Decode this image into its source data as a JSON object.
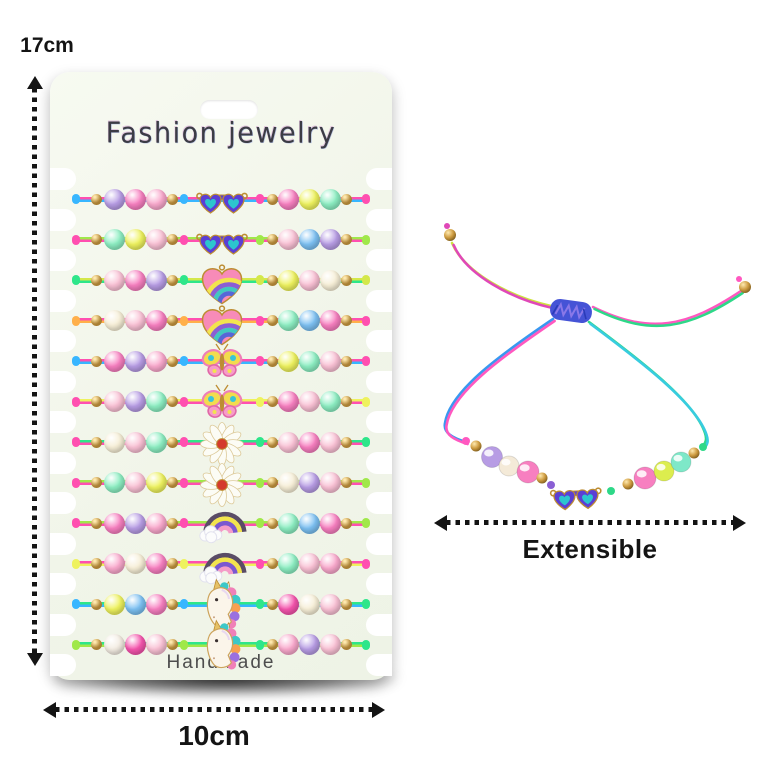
{
  "annotations": {
    "height_label": "17cm",
    "width_label": "10cm",
    "extensible_label": "Extensible"
  },
  "card": {
    "brand": "Fashion jewelry",
    "footer": "Handmade",
    "background": "#f4f7ee",
    "bracelet_count": 12
  },
  "colors": {
    "gold_bead": "#cf9d42",
    "arrow": "#141414",
    "charm_metal": "#bd8d33",
    "charm_purple": "#5b3fd4",
    "charm_teal": "#2cc6ce",
    "shadow": "#141414"
  },
  "charm_types": [
    "heart-glasses",
    "heart-rainbow",
    "butterfly",
    "daisy",
    "rainbow-cloud",
    "unicorn"
  ],
  "bracelet_rows": [
    {
      "charm": "heart-glasses",
      "cord": [
        "#ff4fb0",
        "#38b6ff"
      ],
      "left": [
        "#b79ce4",
        "#f77fc0",
        "#f9a8cc"
      ],
      "right": [
        "#f77fc0",
        "#eef25e",
        "#8ceec2"
      ]
    },
    {
      "charm": "heart-glasses",
      "cord": [
        "#a0e84a",
        "#ff4fb0"
      ],
      "left": [
        "#8ceec2",
        "#eef25e",
        "#f9c0d4"
      ],
      "right": [
        "#f9c0d4",
        "#7cc0f2",
        "#b79ce4"
      ]
    },
    {
      "charm": "heart-rainbow",
      "cord": [
        "#d4e84a",
        "#2ee68a"
      ],
      "left": [
        "#f9c0d4",
        "#f77fc0",
        "#b79ce4"
      ],
      "right": [
        "#eef25e",
        "#f9c0d4",
        "#f6eed6"
      ]
    },
    {
      "charm": "heart-rainbow",
      "cord": [
        "#ff4fb0",
        "#ffb04a"
      ],
      "left": [
        "#f6eed6",
        "#f9c0d4",
        "#f77fc0"
      ],
      "right": [
        "#8ceec2",
        "#7cc0f2",
        "#f77fc0"
      ]
    },
    {
      "charm": "butterfly",
      "cord": [
        "#ff4fb0",
        "#38b6ff"
      ],
      "left": [
        "#f77fc0",
        "#b79ce4",
        "#f9a8cc"
      ],
      "right": [
        "#eef25e",
        "#8ceec2",
        "#f9c0d4"
      ]
    },
    {
      "charm": "butterfly",
      "cord": [
        "#eef25e",
        "#ff4fb0"
      ],
      "left": [
        "#f9c0d4",
        "#b79ce4",
        "#8ceec2"
      ],
      "right": [
        "#f77fc0",
        "#f9c0d4",
        "#8ceec2"
      ]
    },
    {
      "charm": "daisy",
      "cord": [
        "#2ee68a",
        "#ff4fb0"
      ],
      "left": [
        "#f6eed6",
        "#f9c0d4",
        "#8ceec2"
      ],
      "right": [
        "#f9c0d4",
        "#f77fc0",
        "#f9c0d4"
      ]
    },
    {
      "charm": "daisy",
      "cord": [
        "#a0e84a",
        "#ff4fb0"
      ],
      "left": [
        "#8ceec2",
        "#f9c0d4",
        "#eef25e"
      ],
      "right": [
        "#f6eed6",
        "#b79ce4",
        "#f9c0d4"
      ]
    },
    {
      "charm": "rainbow-cloud",
      "cord": [
        "#a0e84a",
        "#ff4fb0"
      ],
      "left": [
        "#f77fc0",
        "#b79ce4",
        "#f9a8cc"
      ],
      "right": [
        "#8ceec2",
        "#7cc0f2",
        "#f77fc0"
      ]
    },
    {
      "charm": "rainbow-cloud",
      "cord": [
        "#ff4fb0",
        "#eef25e"
      ],
      "left": [
        "#f9a8cc",
        "#f6eed6",
        "#f77fc0"
      ],
      "right": [
        "#8ceec2",
        "#f9c0d4",
        "#f9a8cc"
      ]
    },
    {
      "charm": "unicorn",
      "cord": [
        "#2ee68a",
        "#38b6ff"
      ],
      "left": [
        "#eef25e",
        "#7cc0f2",
        "#f77fc0"
      ],
      "right": [
        "#f554ad",
        "#f6eed6",
        "#f9c0d4"
      ]
    },
    {
      "charm": "unicorn",
      "cord": [
        "#2ee68a",
        "#a0e84a"
      ],
      "left": [
        "#f3ece2",
        "#f554ad",
        "#f9c0d4"
      ],
      "right": [
        "#f9a8cc",
        "#b79ce4",
        "#f9c0d4"
      ]
    }
  ],
  "single_bracelet": {
    "charm": "heart-glasses",
    "knot_color": "#4553d6",
    "beads_left": [
      "#b79ce4",
      "#f4ead8",
      "#f77fc0"
    ],
    "beads_right": [
      "#f77fc0",
      "#dced4e",
      "#7ee8c8"
    ],
    "cord_colors": [
      "#cde23e",
      "#e048b8",
      "#3898f0",
      "#ff58c0",
      "#2ed888",
      "#38cce0"
    ]
  }
}
